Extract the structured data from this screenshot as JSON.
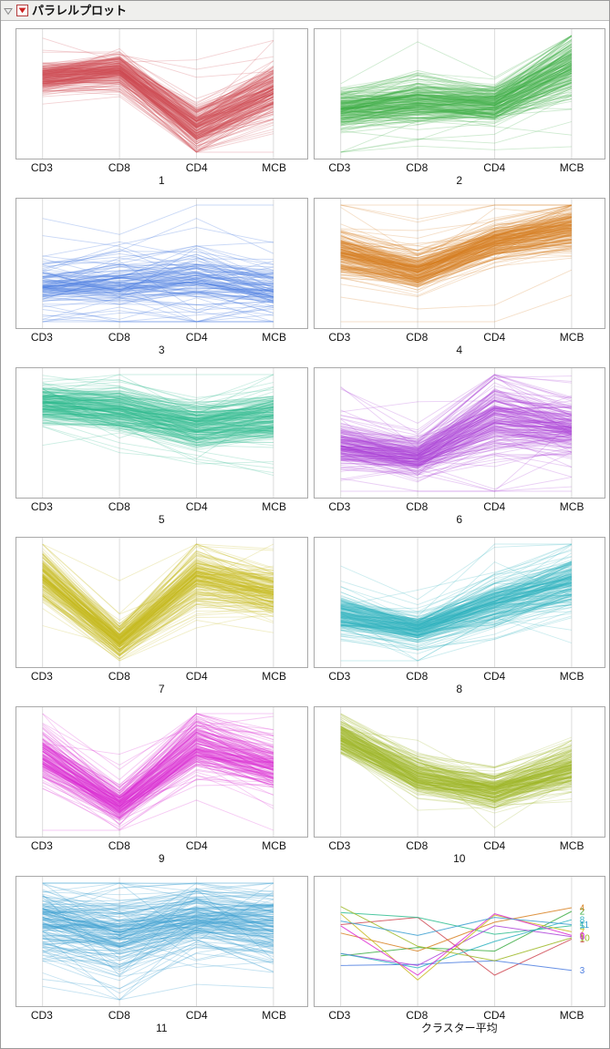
{
  "header": {
    "title": "パラレルプロット"
  },
  "icons": {
    "disclosure": "disclosure-triangle",
    "menu": "red-triangle-menu"
  },
  "axes": [
    "CD3",
    "CD8",
    "CD4",
    "MCB"
  ],
  "chart_data": {
    "type": "line",
    "variant": "parallel-coordinates-small-multiples",
    "axis_labels": [
      "CD3",
      "CD8",
      "CD4",
      "MCB"
    ],
    "axis_fractions": [
      0.09,
      0.355,
      0.62,
      0.885
    ],
    "value_range": [
      0,
      1
    ],
    "grid_color": "#dcdcdc",
    "plot_border_color": "#a9a9a9",
    "clusters": [
      {
        "label": "1",
        "color": "#d04a55",
        "means": [
          0.64,
          0.7,
          0.22,
          0.52
        ],
        "spread": [
          0.06,
          0.07,
          0.1,
          0.12
        ],
        "lines": 210,
        "tail": 0.05,
        "opacity": 0.25
      },
      {
        "label": "2",
        "color": "#3fae46",
        "means": [
          0.38,
          0.45,
          0.42,
          0.75
        ],
        "spread": [
          0.08,
          0.1,
          0.08,
          0.13
        ],
        "lines": 210,
        "tail": 0.06,
        "opacity": 0.25
      },
      {
        "label": "3",
        "color": "#4d7ee0",
        "means": [
          0.3,
          0.31,
          0.34,
          0.26
        ],
        "spread": [
          0.08,
          0.09,
          0.13,
          0.1
        ],
        "lines": 120,
        "tail": 0.18,
        "opacity": 0.3
      },
      {
        "label": "4",
        "color": "#d88122",
        "means": [
          0.57,
          0.42,
          0.66,
          0.78
        ],
        "spread": [
          0.09,
          0.08,
          0.08,
          0.1
        ],
        "lines": 220,
        "tail": 0.05,
        "opacity": 0.25
      },
      {
        "label": "5",
        "color": "#2fbd8f",
        "means": [
          0.74,
          0.7,
          0.56,
          0.63
        ],
        "spread": [
          0.07,
          0.09,
          0.09,
          0.1
        ],
        "lines": 220,
        "tail": 0.07,
        "opacity": 0.25
      },
      {
        "label": "6",
        "color": "#ad3fd9",
        "means": [
          0.4,
          0.3,
          0.63,
          0.54
        ],
        "spread": [
          0.09,
          0.08,
          0.15,
          0.1
        ],
        "lines": 200,
        "tail": 0.12,
        "opacity": 0.25
      },
      {
        "label": "7",
        "color": "#c9ba20",
        "means": [
          0.73,
          0.18,
          0.72,
          0.58
        ],
        "spread": [
          0.1,
          0.06,
          0.11,
          0.09
        ],
        "lines": 200,
        "tail": 0.08,
        "opacity": 0.25
      },
      {
        "label": "8",
        "color": "#2fb3c1",
        "means": [
          0.4,
          0.28,
          0.5,
          0.68
        ],
        "spread": [
          0.09,
          0.07,
          0.1,
          0.12
        ],
        "lines": 200,
        "tail": 0.06,
        "opacity": 0.25
      },
      {
        "label": "9",
        "color": "#dd2bd3",
        "means": [
          0.63,
          0.22,
          0.73,
          0.55
        ],
        "spread": [
          0.1,
          0.07,
          0.12,
          0.1
        ],
        "lines": 180,
        "tail": 0.1,
        "opacity": 0.25
      },
      {
        "label": "10",
        "color": "#9eb826",
        "means": [
          0.79,
          0.46,
          0.34,
          0.53
        ],
        "spread": [
          0.08,
          0.09,
          0.08,
          0.1
        ],
        "lines": 200,
        "tail": 0.05,
        "opacity": 0.25
      },
      {
        "label": "11",
        "color": "#3b9fd1",
        "means": [
          0.67,
          0.55,
          0.7,
          0.64
        ],
        "spread": [
          0.13,
          0.16,
          0.12,
          0.13
        ],
        "lines": 160,
        "tail": 0.15,
        "opacity": 0.3
      }
    ],
    "average_panel": {
      "label": "クラスター平均",
      "line_labels": [
        "1",
        "2",
        "3",
        "4",
        "5",
        "6",
        "7",
        "8",
        "9",
        "10",
        "11"
      ]
    }
  }
}
